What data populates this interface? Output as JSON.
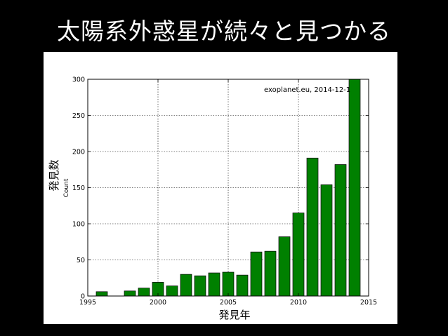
{
  "slide": {
    "title": "太陽系外惑星が続々と見つかる",
    "background": "#000000"
  },
  "chart_data": {
    "type": "bar",
    "x": [
      1996,
      1998,
      1999,
      2000,
      2001,
      2002,
      2003,
      2004,
      2005,
      2006,
      2007,
      2008,
      2009,
      2010,
      2011,
      2012,
      2013,
      2014
    ],
    "values": [
      6,
      7,
      11,
      19,
      14,
      30,
      28,
      32,
      33,
      29,
      61,
      62,
      82,
      115,
      191,
      154,
      182,
      300
    ],
    "xlim": [
      1995,
      2015
    ],
    "ylim": [
      0,
      300
    ],
    "xticks": [
      1995,
      2000,
      2005,
      2010,
      2015
    ],
    "yticks": [
      0,
      50,
      100,
      150,
      200,
      250,
      300
    ],
    "ylabel": "Count",
    "ylabel_jp": "発見数",
    "xlabel_jp": "発見年",
    "annotation": "exoplanet.eu, 2014-12-1",
    "bar_color": "#008000",
    "grid": true
  }
}
